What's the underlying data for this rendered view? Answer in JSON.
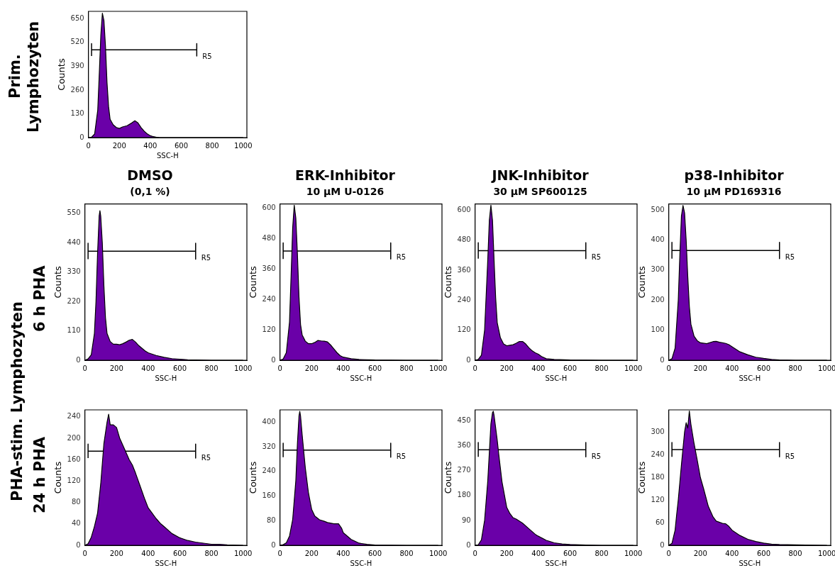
{
  "chart_data": [
    {
      "type": "area",
      "xlabel": "SSC-H",
      "ylabel": "Counts",
      "xlim": [
        0,
        1024
      ],
      "xticks": [
        0,
        200,
        400,
        600,
        800,
        1000
      ],
      "ylim": [
        0,
        690
      ],
      "yticks": [
        0,
        130,
        260,
        390,
        520,
        650
      ],
      "annotations": [
        "Prim. Lymphozyten"
      ],
      "series": [
        {
          "type": "area",
          "color": "#6a00a8",
          "x": [
            0,
            20,
            40,
            60,
            70,
            80,
            90,
            100,
            110,
            120,
            130,
            140,
            160,
            180,
            200,
            220,
            250,
            280,
            300,
            320,
            340,
            360,
            380,
            400,
            420,
            440,
            460,
            600,
            800,
            1000
          ],
          "values": [
            0,
            2,
            20,
            150,
            350,
            560,
            680,
            640,
            500,
            300,
            170,
            100,
            70,
            55,
            50,
            58,
            65,
            80,
            92,
            80,
            55,
            35,
            20,
            10,
            5,
            2,
            0,
            0,
            0,
            0
          ]
        },
        {
          "type": "line",
          "name": "R5",
          "color": "#000000",
          "x": [
            20,
            20,
            20,
            700,
            700,
            700
          ],
          "values": [
            446,
            514,
            480,
            480,
            514,
            446
          ]
        }
      ]
    },
    {
      "type": "area",
      "title": "DMSO",
      "subtitle": "(0,1 %)",
      "xlabel": "SSC-H",
      "ylabel": "Counts",
      "xlim": [
        0,
        1024
      ],
      "xticks": [
        0,
        200,
        400,
        600,
        800,
        1000
      ],
      "ylim": [
        0,
        585
      ],
      "yticks": [
        0,
        110,
        220,
        330,
        440,
        550
      ],
      "annotations": [
        "PHA-stim. Lymphozyten",
        "6 h PHA"
      ],
      "series": [
        {
          "type": "area",
          "color": "#6a00a8",
          "x": [
            0,
            20,
            40,
            60,
            70,
            80,
            90,
            95,
            100,
            110,
            120,
            130,
            140,
            160,
            180,
            200,
            220,
            240,
            260,
            280,
            300,
            320,
            340,
            360,
            380,
            400,
            450,
            500,
            550,
            600,
            650,
            700,
            800,
            1000
          ],
          "values": [
            0,
            5,
            20,
            100,
            220,
            400,
            540,
            560,
            540,
            440,
            280,
            160,
            100,
            70,
            60,
            60,
            58,
            62,
            68,
            75,
            78,
            68,
            55,
            45,
            35,
            28,
            18,
            11,
            6,
            4,
            2,
            1,
            0,
            0
          ]
        },
        {
          "type": "line",
          "name": "R5",
          "color": "#000000",
          "x": [
            20,
            20,
            20,
            700,
            700,
            700
          ],
          "values": [
            378,
            438,
            408,
            408,
            438,
            378
          ]
        }
      ]
    },
    {
      "type": "area",
      "title": "ERK-Inhibitor",
      "subtitle": "10 µM U-0126",
      "xlabel": "SSC-H",
      "ylabel": "Counts",
      "xlim": [
        0,
        1024
      ],
      "xticks": [
        0,
        200,
        400,
        600,
        800,
        1000
      ],
      "ylim": [
        0,
        615
      ],
      "yticks": [
        0,
        120,
        240,
        360,
        480,
        600
      ],
      "series": [
        {
          "type": "area",
          "color": "#6a00a8",
          "x": [
            0,
            20,
            40,
            60,
            70,
            80,
            90,
            100,
            110,
            120,
            130,
            140,
            160,
            180,
            200,
            220,
            240,
            260,
            280,
            300,
            320,
            340,
            360,
            380,
            400,
            450,
            500,
            600,
            800,
            1000
          ],
          "values": [
            0,
            5,
            30,
            150,
            330,
            520,
            610,
            560,
            420,
            250,
            140,
            100,
            75,
            65,
            65,
            70,
            78,
            76,
            75,
            72,
            60,
            45,
            30,
            18,
            12,
            6,
            3,
            1,
            0,
            0
          ]
        },
        {
          "type": "line",
          "name": "R5",
          "color": "#000000",
          "x": [
            20,
            20,
            20,
            700,
            700,
            700
          ],
          "values": [
            398,
            462,
            430,
            430,
            462,
            398
          ]
        }
      ]
    },
    {
      "type": "area",
      "title": "JNK-Inhibitor",
      "subtitle": "30 µM SP600125",
      "xlabel": "SSC-H",
      "ylabel": "Counts",
      "xlim": [
        0,
        1024
      ],
      "xticks": [
        0,
        200,
        400,
        600,
        800,
        1000
      ],
      "ylim": [
        0,
        625
      ],
      "yticks": [
        0,
        120,
        240,
        360,
        480,
        600
      ],
      "series": [
        {
          "type": "area",
          "color": "#6a00a8",
          "x": [
            0,
            20,
            40,
            60,
            80,
            90,
            100,
            110,
            120,
            130,
            140,
            160,
            180,
            200,
            220,
            240,
            260,
            280,
            300,
            320,
            340,
            360,
            380,
            400,
            420,
            450,
            500,
            600,
            800,
            1000
          ],
          "values": [
            0,
            3,
            20,
            120,
            400,
            560,
            620,
            560,
            400,
            250,
            150,
            90,
            65,
            58,
            60,
            62,
            68,
            75,
            75,
            65,
            50,
            38,
            30,
            24,
            15,
            6,
            3,
            1,
            0,
            0
          ]
        },
        {
          "type": "line",
          "name": "R5",
          "color": "#000000",
          "x": [
            20,
            20,
            20,
            700,
            700,
            700
          ],
          "values": [
            406,
            470,
            438,
            438,
            470,
            406
          ]
        }
      ]
    },
    {
      "type": "area",
      "title": "p38-Inhibitor",
      "subtitle": "10 µM PD169316",
      "xlabel": "SSC-H",
      "ylabel": "Counts",
      "xlim": [
        0,
        1024
      ],
      "xticks": [
        0,
        200,
        400,
        600,
        800,
        1000
      ],
      "ylim": [
        0,
        520
      ],
      "yticks": [
        0,
        100,
        200,
        300,
        400,
        500
      ],
      "series": [
        {
          "type": "area",
          "color": "#6a00a8",
          "x": [
            0,
            20,
            40,
            60,
            70,
            80,
            90,
            100,
            110,
            120,
            130,
            140,
            160,
            180,
            200,
            240,
            280,
            300,
            320,
            360,
            380,
            400,
            450,
            500,
            550,
            600,
            650,
            700,
            800,
            1000
          ],
          "values": [
            0,
            5,
            40,
            200,
            350,
            480,
            515,
            490,
            400,
            280,
            180,
            120,
            80,
            65,
            58,
            55,
            62,
            63,
            60,
            56,
            52,
            45,
            28,
            18,
            10,
            6,
            3,
            1,
            0,
            0
          ]
        },
        {
          "type": "line",
          "name": "R5",
          "color": "#000000",
          "x": [
            20,
            20,
            20,
            700,
            700,
            700
          ],
          "values": [
            338,
            392,
            365,
            365,
            392,
            338
          ]
        }
      ]
    },
    {
      "type": "area",
      "xlabel": "SSC-H",
      "ylabel": "Counts",
      "xlim": [
        0,
        1024
      ],
      "xticks": [
        0,
        200,
        400,
        600,
        800,
        1000
      ],
      "ylim": [
        0,
        253
      ],
      "yticks": [
        0,
        40,
        80,
        120,
        160,
        200,
        240
      ],
      "annotations": [
        "24 h PHA"
      ],
      "series": [
        {
          "type": "area",
          "color": "#6a00a8",
          "x": [
            0,
            20,
            40,
            60,
            80,
            100,
            120,
            140,
            150,
            160,
            180,
            200,
            220,
            250,
            280,
            300,
            320,
            350,
            380,
            400,
            420,
            450,
            480,
            500,
            550,
            600,
            650,
            700,
            750,
            800,
            850,
            900,
            1000
          ],
          "values": [
            0,
            3,
            15,
            35,
            60,
            115,
            190,
            230,
            245,
            225,
            225,
            220,
            200,
            180,
            160,
            150,
            135,
            110,
            85,
            70,
            62,
            50,
            40,
            35,
            22,
            14,
            9,
            6,
            4,
            2,
            2,
            1,
            0
          ]
        },
        {
          "type": "line",
          "name": "R5",
          "color": "#000000",
          "x": [
            20,
            20,
            20,
            700,
            700,
            700
          ],
          "values": [
            163,
            189,
            176,
            176,
            189,
            163
          ]
        }
      ]
    },
    {
      "type": "area",
      "xlabel": "SSC-H",
      "ylabel": "Counts",
      "xlim": [
        0,
        1024
      ],
      "xticks": [
        0,
        200,
        400,
        600,
        800,
        1000
      ],
      "ylim": [
        0,
        440
      ],
      "yticks": [
        0,
        80,
        160,
        240,
        320,
        400
      ],
      "series": [
        {
          "type": "area",
          "color": "#6a00a8",
          "x": [
            0,
            20,
            40,
            60,
            80,
            100,
            110,
            120,
            125,
            130,
            140,
            160,
            180,
            200,
            220,
            250,
            280,
            300,
            340,
            370,
            390,
            400,
            450,
            500,
            550,
            600,
            800,
            1000
          ],
          "values": [
            0,
            2,
            8,
            30,
            83,
            210,
            330,
            420,
            435,
            420,
            360,
            252,
            170,
            117,
            95,
            83,
            78,
            74,
            70,
            70,
            55,
            41,
            19,
            7,
            3,
            1,
            0,
            0
          ]
        },
        {
          "type": "line",
          "name": "R5",
          "color": "#000000",
          "x": [
            20,
            20,
            20,
            700,
            700,
            700
          ],
          "values": [
            286,
            332,
            309,
            309,
            332,
            286
          ]
        }
      ]
    },
    {
      "type": "area",
      "xlabel": "SSC-H",
      "ylabel": "Counts",
      "xlim": [
        0,
        1024
      ],
      "xticks": [
        0,
        200,
        400,
        600,
        800,
        1000
      ],
      "ylim": [
        0,
        490
      ],
      "yticks": [
        0,
        90,
        180,
        270,
        360,
        450
      ],
      "series": [
        {
          "type": "area",
          "color": "#6a00a8",
          "x": [
            0,
            20,
            40,
            60,
            80,
            100,
            110,
            115,
            120,
            140,
            150,
            170,
            200,
            220,
            240,
            260,
            300,
            340,
            380,
            400,
            450,
            500,
            550,
            600,
            700,
            800,
            1000
          ],
          "values": [
            0,
            2,
            20,
            90,
            232,
            440,
            480,
            485,
            470,
            380,
            327,
            230,
            137,
            115,
            100,
            95,
            80,
            60,
            40,
            33,
            18,
            9,
            5,
            3,
            1,
            0,
            0
          ]
        },
        {
          "type": "line",
          "name": "R5",
          "color": "#000000",
          "x": [
            20,
            20,
            20,
            700,
            700,
            700
          ],
          "values": [
            320,
            372,
            346,
            346,
            372,
            320
          ]
        }
      ]
    },
    {
      "type": "area",
      "xlabel": "SSC-H",
      "ylabel": "Counts",
      "xlim": [
        0,
        1024
      ],
      "xticks": [
        0,
        200,
        400,
        600,
        800,
        1000
      ],
      "ylim": [
        0,
        358
      ],
      "yticks": [
        0,
        60,
        120,
        180,
        240,
        300
      ],
      "series": [
        {
          "type": "area",
          "color": "#6a00a8",
          "x": [
            0,
            20,
            40,
            50,
            60,
            80,
            100,
            110,
            120,
            130,
            140,
            160,
            180,
            200,
            220,
            250,
            280,
            300,
            340,
            360,
            380,
            400,
            450,
            500,
            550,
            600,
            650,
            700,
            800,
            1000
          ],
          "values": [
            0,
            5,
            40,
            82,
            120,
            213,
            300,
            324,
            310,
            355,
            320,
            269,
            225,
            179,
            150,
            103,
            75,
            64,
            58,
            57,
            50,
            40,
            26,
            16,
            10,
            6,
            3,
            2,
            1,
            0
          ]
        },
        {
          "type": "line",
          "name": "R5",
          "color": "#000000",
          "x": [
            20,
            20,
            20,
            700,
            700,
            700
          ],
          "values": [
            234,
            272,
            253,
            253,
            272,
            234
          ]
        }
      ]
    }
  ]
}
